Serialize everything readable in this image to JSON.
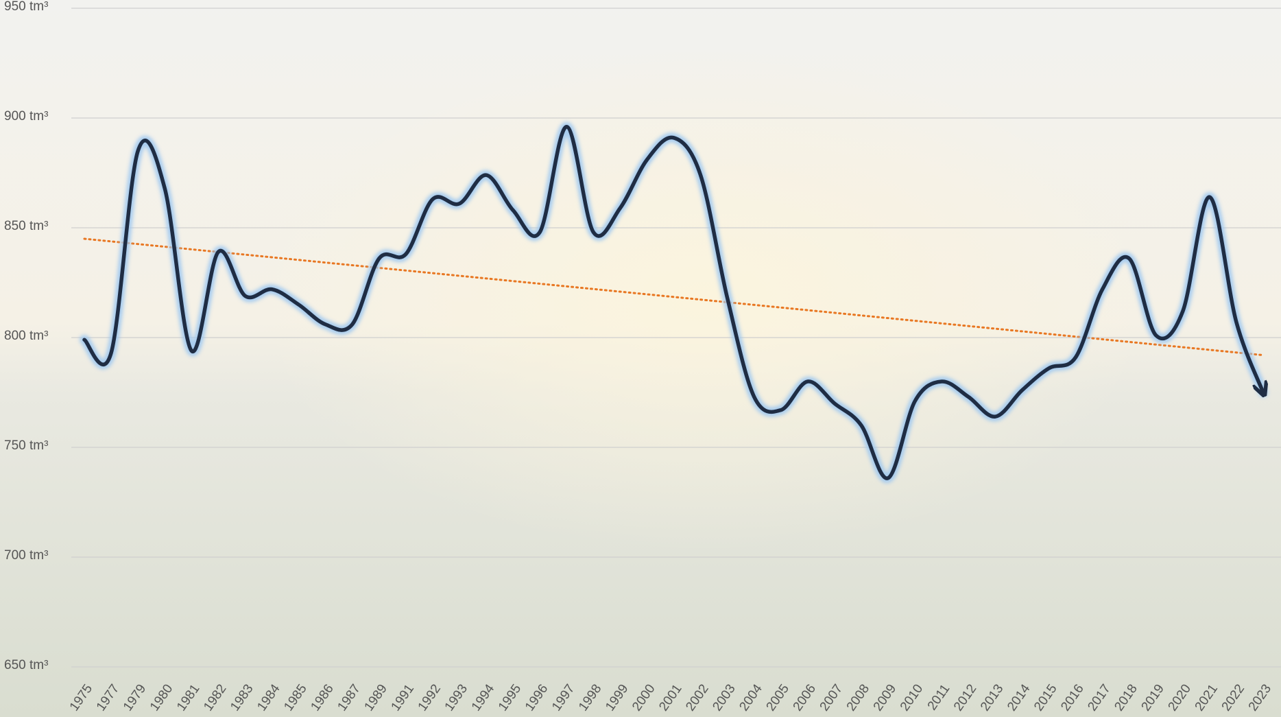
{
  "chart_data": {
    "type": "line",
    "categories": [
      "1975",
      "1977",
      "1979",
      "1980",
      "1981",
      "1982",
      "1983",
      "1984",
      "1985",
      "1986",
      "1987",
      "1989",
      "1991",
      "1992",
      "1993",
      "1994",
      "1995",
      "1996",
      "1997",
      "1998",
      "1999",
      "2000",
      "2001",
      "2002",
      "2003",
      "2004",
      "2005",
      "2006",
      "2007",
      "2008",
      "2009",
      "2010",
      "2011",
      "2012",
      "2013",
      "2014",
      "2015",
      "2016",
      "2017",
      "2018",
      "2019",
      "2020",
      "2021",
      "2022",
      "2023"
    ],
    "series": [
      {
        "color": "#1f2d44",
        "values": [
          799,
          793,
          885,
          868,
          794,
          839,
          819,
          822,
          815,
          806,
          806,
          836,
          838,
          863,
          861,
          874,
          858,
          848,
          896,
          848,
          859,
          881,
          891,
          874,
          818,
          773,
          767,
          780,
          770,
          760,
          736,
          771,
          780,
          773,
          764,
          776,
          786,
          791,
          822,
          836,
          801,
          812,
          864,
          807,
          775
        ]
      }
    ],
    "trendline": {
      "color": "#e87722",
      "values": [
        845,
        792
      ]
    },
    "ylim": [
      650,
      950
    ],
    "yticks": [
      {
        "value": 650,
        "label": "650 tm³"
      },
      {
        "value": 700,
        "label": "700 tm³"
      },
      {
        "value": 750,
        "label": "750 tm³"
      },
      {
        "value": 800,
        "label": "800 tm³"
      },
      {
        "value": 850,
        "label": "850 tm³"
      },
      {
        "value": 900,
        "label": "900 tm³"
      },
      {
        "value": 950,
        "label": "950 tm³"
      }
    ],
    "grid": true
  }
}
